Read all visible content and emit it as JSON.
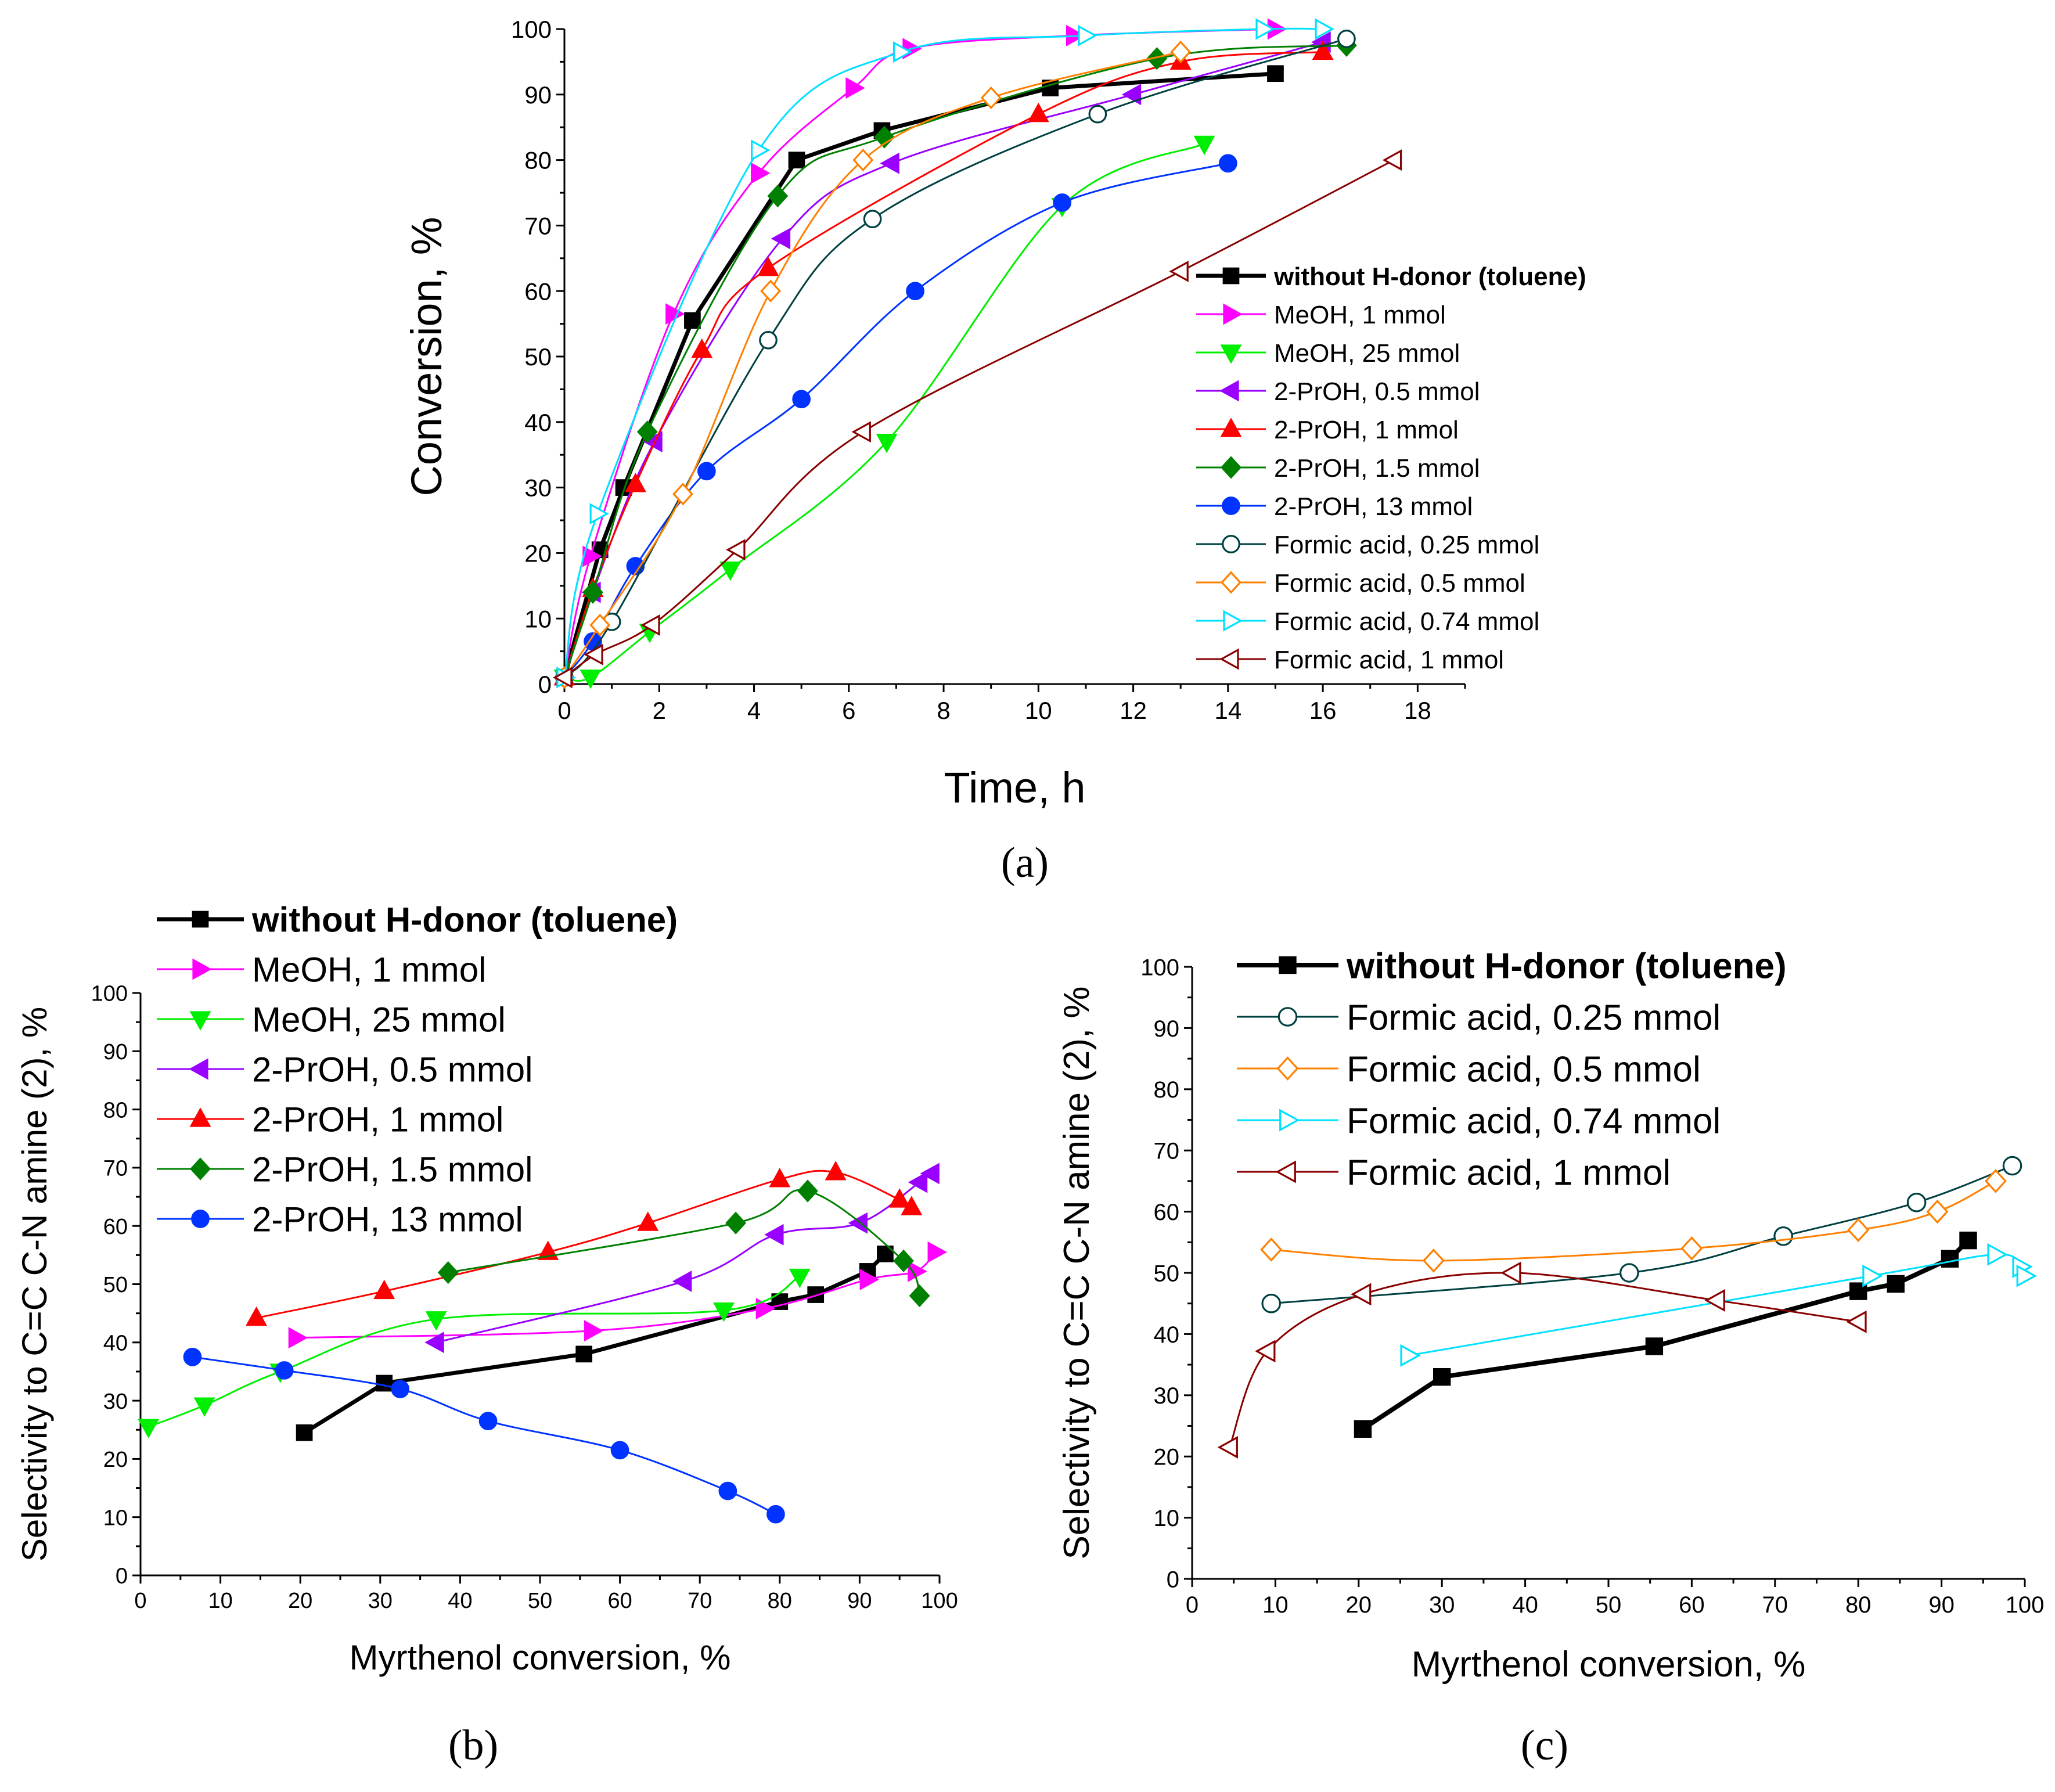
{
  "series_styles": {
    "toluene": {
      "color": "#000000",
      "marker": "square",
      "filled": true,
      "bold": true
    },
    "meoh1": {
      "color": "#ff00ff",
      "marker": "tri-right",
      "filled": true,
      "bold": false
    },
    "meoh25": {
      "color": "#00ee00",
      "marker": "tri-down",
      "filled": true,
      "bold": false
    },
    "propoh05": {
      "color": "#9900ff",
      "marker": "tri-left",
      "filled": true,
      "bold": false
    },
    "propoh1": {
      "color": "#ff0000",
      "marker": "tri-up",
      "filled": true,
      "bold": false
    },
    "propoh15": {
      "color": "#008000",
      "marker": "diamond",
      "filled": true,
      "bold": false
    },
    "propoh13": {
      "color": "#0033ff",
      "marker": "circle",
      "filled": true,
      "bold": false
    },
    "fa025": {
      "color": "#004040",
      "marker": "circle",
      "filled": false,
      "bold": false
    },
    "fa05": {
      "color": "#ff8000",
      "marker": "diamond",
      "filled": false,
      "bold": false
    },
    "fa074": {
      "color": "#00e0ff",
      "marker": "tri-right",
      "filled": false,
      "bold": false
    },
    "fa1": {
      "color": "#880000",
      "marker": "tri-left",
      "filled": false,
      "bold": false
    }
  },
  "chart_data": [
    {
      "panel": "a",
      "panel_label": "(a)",
      "type": "line",
      "xlabel": "Time, h",
      "ylabel": "Conversion, %",
      "xlim": [
        0,
        19
      ],
      "ylim": [
        0,
        100
      ],
      "x_ticks": [
        0,
        2,
        4,
        6,
        8,
        10,
        12,
        14,
        16,
        18
      ],
      "y_ticks": [
        0,
        10,
        20,
        30,
        40,
        50,
        60,
        70,
        80,
        90,
        100
      ],
      "legend_position": "right",
      "series": [
        {
          "key": "toluene",
          "name": "without H-donor (toluene)",
          "points": [
            [
              0,
              1
            ],
            [
              0.75,
              20.5
            ],
            [
              1.25,
              30
            ],
            [
              2.7,
              55.5
            ],
            [
              4.9,
              80
            ],
            [
              6.7,
              84.5
            ],
            [
              10.25,
              91
            ],
            [
              15,
              93.2
            ]
          ]
        },
        {
          "key": "meoh1",
          "name": "MeOH, 1 mmol",
          "points": [
            [
              0,
              1
            ],
            [
              0.55,
              19.5
            ],
            [
              2.3,
              56.5
            ],
            [
              4.1,
              78
            ],
            [
              6.1,
              91
            ],
            [
              7.3,
              97
            ],
            [
              10.75,
              99
            ],
            [
              15,
              100
            ]
          ]
        },
        {
          "key": "meoh25",
          "name": "MeOH, 25 mmol",
          "points": [
            [
              0,
              1
            ],
            [
              0.55,
              1
            ],
            [
              1.8,
              8
            ],
            [
              3.5,
              17.5
            ],
            [
              6.8,
              37
            ],
            [
              10.5,
              73
            ],
            [
              13.5,
              82.5
            ]
          ]
        },
        {
          "key": "propoh05",
          "name": "2-PrOH, 0.5 mmol",
          "points": [
            [
              0,
              1
            ],
            [
              0.6,
              14
            ],
            [
              1.9,
              37
            ],
            [
              4.6,
              68
            ],
            [
              6.9,
              79.5
            ],
            [
              12,
              90
            ],
            [
              16,
              98
            ]
          ]
        },
        {
          "key": "propoh1",
          "name": "2-PrOH, 1 mmol",
          "points": [
            [
              0,
              1
            ],
            [
              0.6,
              14.5
            ],
            [
              1.5,
              30.5
            ],
            [
              2.9,
              51
            ],
            [
              4.3,
              63.5
            ],
            [
              10,
              87
            ],
            [
              13,
              95
            ],
            [
              16,
              96.5
            ]
          ]
        },
        {
          "key": "propoh15",
          "name": "2-PrOH, 1.5 mmol",
          "points": [
            [
              0,
              1
            ],
            [
              0.6,
              14
            ],
            [
              1.75,
              38.5
            ],
            [
              4.5,
              74.5
            ],
            [
              6.75,
              83.5
            ],
            [
              12.5,
              95.5
            ],
            [
              16.5,
              97.5
            ]
          ]
        },
        {
          "key": "propoh13",
          "name": "2-PrOH, 13 mmol",
          "points": [
            [
              0,
              1
            ],
            [
              0.6,
              6.5
            ],
            [
              1.5,
              18
            ],
            [
              3,
              32.5
            ],
            [
              5,
              43.5
            ],
            [
              7.4,
              60
            ],
            [
              10.5,
              73.5
            ],
            [
              14,
              79.5
            ]
          ]
        },
        {
          "key": "fa025",
          "name": "Formic acid, 0.25 mmol",
          "points": [
            [
              0,
              1
            ],
            [
              1,
              9.5
            ],
            [
              4.3,
              52.5
            ],
            [
              6.5,
              71
            ],
            [
              11.25,
              87
            ],
            [
              16.5,
              98.5
            ]
          ]
        },
        {
          "key": "fa05",
          "name": "Formic acid, 0.5 mmol",
          "points": [
            [
              0,
              1
            ],
            [
              0.75,
              9
            ],
            [
              2.5,
              29
            ],
            [
              4.35,
              60
            ],
            [
              6.3,
              80
            ],
            [
              9,
              89.5
            ],
            [
              13,
              96.5
            ]
          ]
        },
        {
          "key": "fa074",
          "name": "Formic acid, 0.74 mmol",
          "points": [
            [
              0,
              1
            ],
            [
              0.7,
              26
            ],
            [
              4.1,
              81.5
            ],
            [
              7.1,
              96.5
            ],
            [
              11,
              99
            ],
            [
              14.75,
              100
            ],
            [
              16,
              100
            ]
          ]
        },
        {
          "key": "fa1",
          "name": "Formic acid, 1 mmol",
          "points": [
            [
              0,
              1
            ],
            [
              0.65,
              4.5
            ],
            [
              1.85,
              9
            ],
            [
              3.65,
              20.5
            ],
            [
              6.3,
              38.5
            ],
            [
              13,
              63
            ],
            [
              17.5,
              80
            ]
          ]
        }
      ]
    },
    {
      "panel": "b",
      "panel_label": "(b)",
      "type": "line",
      "xlabel": "Myrthenol conversion, %",
      "ylabel": "Selectivity to C=C C-N amine (2), %",
      "xlim": [
        0,
        100
      ],
      "ylim": [
        0,
        100
      ],
      "x_ticks": [
        0,
        10,
        20,
        30,
        40,
        50,
        60,
        70,
        80,
        90,
        100
      ],
      "y_ticks": [
        0,
        10,
        20,
        30,
        40,
        50,
        60,
        70,
        80,
        90,
        100
      ],
      "legend_position": "top-left",
      "series": [
        {
          "key": "toluene",
          "name": "without H-donor (toluene)",
          "points": [
            [
              20.5,
              24.5
            ],
            [
              30.5,
              33
            ],
            [
              55.5,
              38
            ],
            [
              80,
              47
            ],
            [
              84.5,
              48.2
            ],
            [
              91,
              52.2
            ],
            [
              93.2,
              55.2
            ]
          ]
        },
        {
          "key": "meoh1",
          "name": "MeOH, 1 mmol",
          "points": [
            [
              19.5,
              40.8
            ],
            [
              56.5,
              42
            ],
            [
              78,
              45.8
            ],
            [
              91,
              50.8
            ],
            [
              97,
              52.2
            ],
            [
              99.5,
              55.5
            ]
          ]
        },
        {
          "key": "meoh25",
          "name": "MeOH, 25 mmol",
          "points": [
            [
              1,
              25.5
            ],
            [
              8,
              29.2
            ],
            [
              17.5,
              35
            ],
            [
              37,
              44
            ],
            [
              73,
              45.5
            ],
            [
              82.5,
              51.3
            ]
          ]
        },
        {
          "key": "propoh05",
          "name": "2-PrOH, 0.5 mmol",
          "points": [
            [
              37,
              40
            ],
            [
              68,
              50.5
            ],
            [
              79.5,
              58.5
            ],
            [
              90,
              60.5
            ],
            [
              97.5,
              67.5
            ],
            [
              99,
              69
            ]
          ]
        },
        {
          "key": "propoh1",
          "name": "2-PrOH, 1 mmol",
          "points": [
            [
              14.5,
              44.2
            ],
            [
              30.5,
              48.8
            ],
            [
              51,
              55.5
            ],
            [
              63.5,
              60.5
            ],
            [
              80,
              68
            ],
            [
              87,
              69.2
            ],
            [
              95,
              64.5
            ],
            [
              96.5,
              63.2
            ]
          ]
        },
        {
          "key": "propoh15",
          "name": "2-PrOH, 1.5 mmol",
          "points": [
            [
              38.5,
              52
            ],
            [
              74.5,
              60.5
            ],
            [
              83.5,
              66
            ],
            [
              95.5,
              54
            ],
            [
              97.5,
              48
            ]
          ]
        },
        {
          "key": "propoh13",
          "name": "2-PrOH, 13 mmol",
          "points": [
            [
              6.5,
              37.5
            ],
            [
              18,
              35.2
            ],
            [
              32.5,
              32
            ],
            [
              43.5,
              26.5
            ],
            [
              60,
              21.5
            ],
            [
              73.5,
              14.5
            ],
            [
              79.5,
              10.5
            ]
          ]
        }
      ]
    },
    {
      "panel": "c",
      "panel_label": "(c)",
      "type": "line",
      "xlabel": "Myrthenol conversion, %",
      "ylabel": "Selectivity to C=C C-N amine (2), %",
      "xlim": [
        0,
        100
      ],
      "ylim": [
        0,
        100
      ],
      "x_ticks": [
        0,
        10,
        20,
        30,
        40,
        50,
        60,
        70,
        80,
        90,
        100
      ],
      "y_ticks": [
        0,
        10,
        20,
        30,
        40,
        50,
        60,
        70,
        80,
        90,
        100
      ],
      "legend_position": "top-left",
      "series": [
        {
          "key": "toluene",
          "name": "without H-donor (toluene)",
          "points": [
            [
              20.5,
              24.5
            ],
            [
              30,
              33
            ],
            [
              55.5,
              38
            ],
            [
              80,
              47
            ],
            [
              84.5,
              48.2
            ],
            [
              91,
              52.3
            ],
            [
              93.2,
              55.3
            ]
          ]
        },
        {
          "key": "fa025",
          "name": "Formic acid, 0.25 mmol",
          "points": [
            [
              9.5,
              45
            ],
            [
              52.5,
              50
            ],
            [
              71,
              56
            ],
            [
              87,
              61.5
            ],
            [
              98.5,
              67.5
            ]
          ]
        },
        {
          "key": "fa05",
          "name": "Formic acid, 0.5 mmol",
          "points": [
            [
              9.5,
              53.8
            ],
            [
              29,
              52
            ],
            [
              60,
              54
            ],
            [
              80,
              57
            ],
            [
              89.5,
              60
            ],
            [
              96.5,
              65
            ]
          ]
        },
        {
          "key": "fa074",
          "name": "Formic acid, 0.74 mmol",
          "points": [
            [
              26,
              36.5
            ],
            [
              81.5,
              49.5
            ],
            [
              96.5,
              53
            ],
            [
              99.5,
              51
            ],
            [
              100,
              49.5
            ]
          ]
        },
        {
          "key": "fa1",
          "name": "Formic acid, 1 mmol",
          "points": [
            [
              4.5,
              21.5
            ],
            [
              9,
              37.2
            ],
            [
              20.5,
              46.5
            ],
            [
              38.5,
              50
            ],
            [
              63,
              45.5
            ],
            [
              80,
              42
            ]
          ]
        }
      ]
    }
  ]
}
